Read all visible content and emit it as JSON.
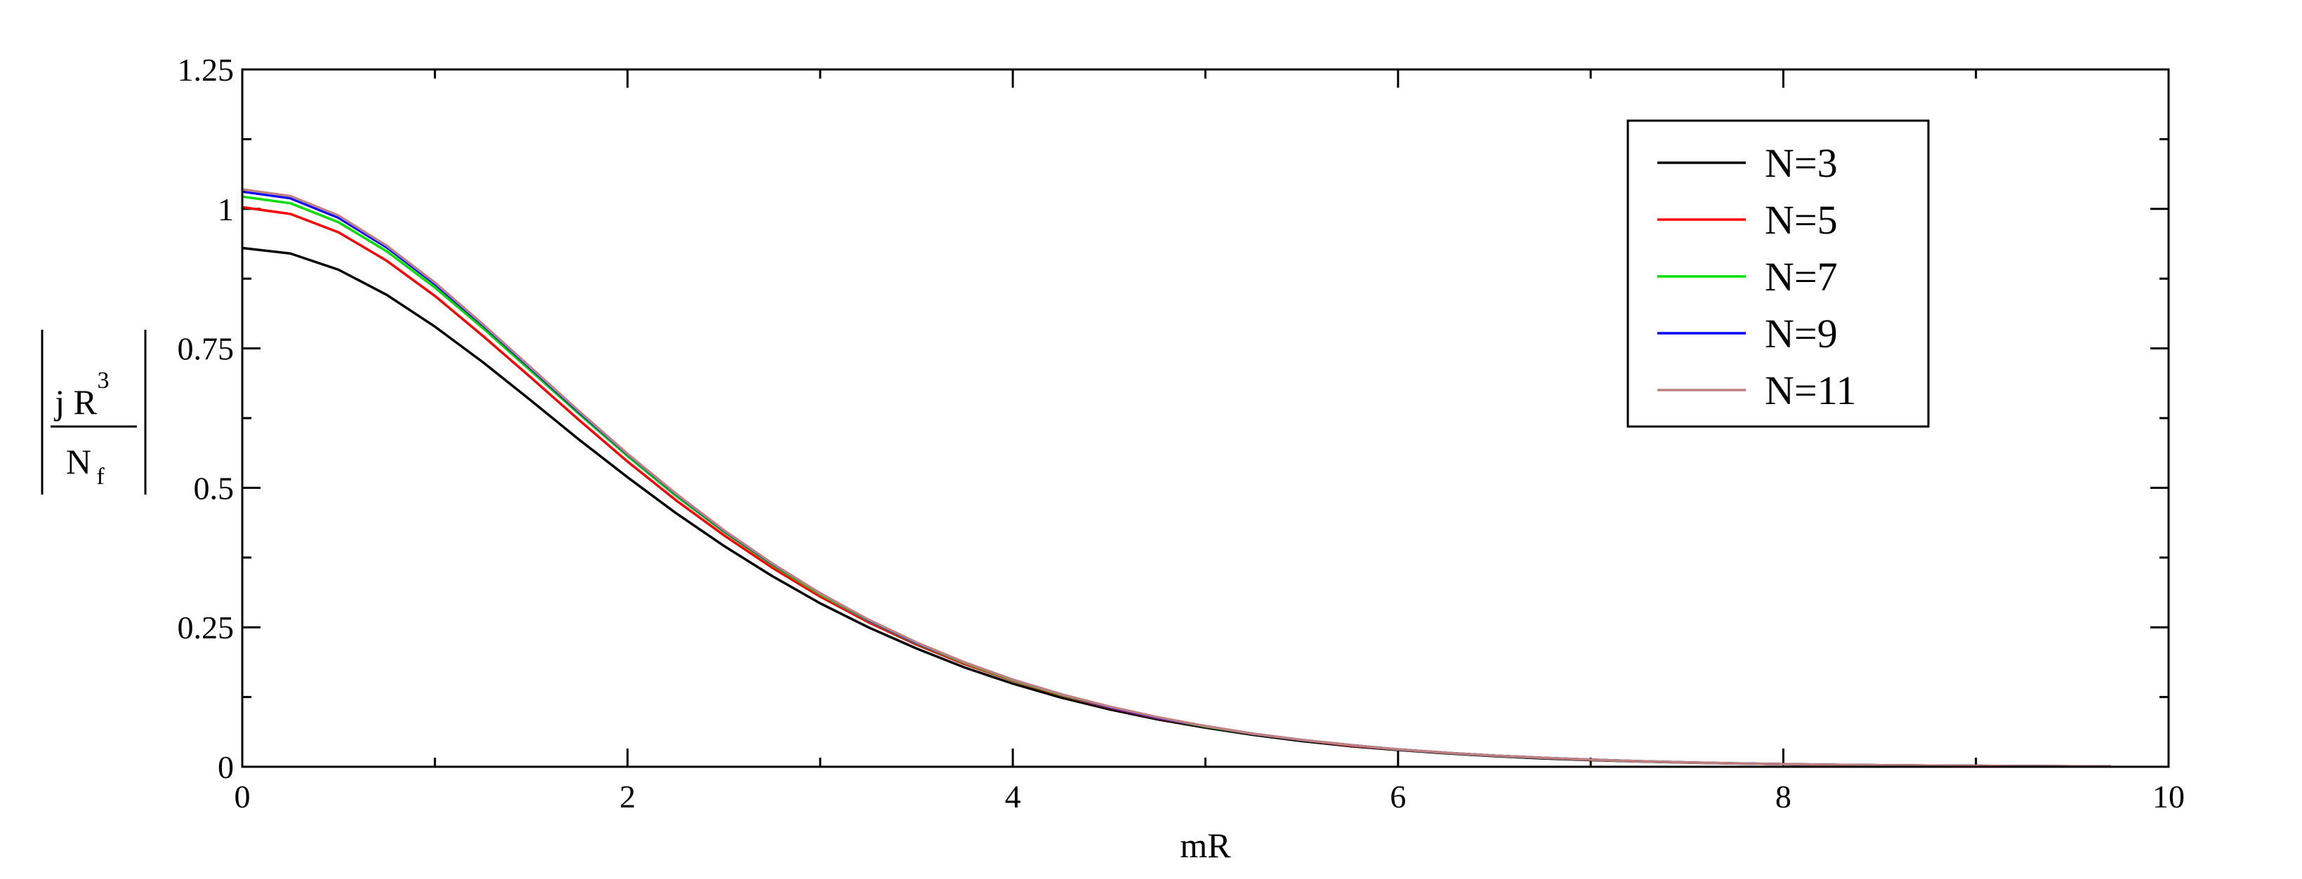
{
  "chart_data": {
    "type": "line",
    "xlabel": "mR",
    "ylabel": {
      "numerator": "j R",
      "numerator_exponent": "3",
      "denominator": "N",
      "denominator_subscript": "f"
    },
    "xlim": [
      0,
      10
    ],
    "ylim": [
      0,
      1.25
    ],
    "x_ticks": [
      "0",
      "2",
      "4",
      "6",
      "8",
      "10"
    ],
    "y_ticks": [
      "0",
      "0.25",
      "0.5",
      "0.75",
      "1",
      "1.25"
    ],
    "grid": false,
    "legend_position": "top-right",
    "x": [
      0,
      0.25,
      0.5,
      0.75,
      1,
      1.25,
      1.5,
      1.75,
      2,
      2.25,
      2.5,
      2.75,
      3,
      3.25,
      3.5,
      3.75,
      4,
      4.25,
      4.5,
      4.75,
      5,
      5.25,
      5.5,
      5.75,
      6,
      6.25,
      6.5,
      6.75,
      7,
      7.25,
      7.5,
      7.75,
      8,
      8.25,
      8.5,
      8.75,
      9,
      9.25,
      9.5,
      9.7
    ],
    "series": [
      {
        "name": "N=3",
        "color": "#000000",
        "values": [
          0.93,
          0.92,
          0.891,
          0.846,
          0.789,
          0.725,
          0.656,
          0.586,
          0.519,
          0.455,
          0.396,
          0.342,
          0.293,
          0.25,
          0.212,
          0.178,
          0.149,
          0.124,
          0.103,
          0.085,
          0.07,
          0.057,
          0.046,
          0.037,
          0.03,
          0.024,
          0.019,
          0.015,
          0.012,
          0.0095,
          0.0075,
          0.0059,
          0.0046,
          0.0036,
          0.0028,
          0.0022,
          0.0017,
          0.0013,
          0.001,
          0.0008
        ]
      },
      {
        "name": "N=5",
        "color": "#ff0000",
        "values": [
          1.003,
          0.991,
          0.958,
          0.907,
          0.844,
          0.772,
          0.697,
          0.621,
          0.547,
          0.478,
          0.415,
          0.357,
          0.305,
          0.259,
          0.219,
          0.184,
          0.154,
          0.128,
          0.106,
          0.087,
          0.072,
          0.059,
          0.048,
          0.038,
          0.031,
          0.025,
          0.02,
          0.016,
          0.0125,
          0.0098,
          0.0077,
          0.006,
          0.0047,
          0.0037,
          0.0029,
          0.0022,
          0.0017,
          0.0013,
          0.001,
          0.0008
        ]
      },
      {
        "name": "N=7",
        "color": "#00dd00",
        "values": [
          1.022,
          1.01,
          0.976,
          0.924,
          0.859,
          0.786,
          0.709,
          0.632,
          0.557,
          0.486,
          0.421,
          0.362,
          0.309,
          0.262,
          0.221,
          0.186,
          0.155,
          0.129,
          0.107,
          0.088,
          0.072,
          0.059,
          0.048,
          0.039,
          0.031,
          0.025,
          0.02,
          0.016,
          0.0127,
          0.0099,
          0.0078,
          0.0061,
          0.0047,
          0.0037,
          0.0029,
          0.0022,
          0.0017,
          0.0013,
          0.001,
          0.0008
        ]
      },
      {
        "name": "N=9",
        "color": "#0000ff",
        "values": [
          1.031,
          1.019,
          0.984,
          0.931,
          0.865,
          0.791,
          0.713,
          0.635,
          0.56,
          0.489,
          0.423,
          0.364,
          0.311,
          0.263,
          0.222,
          0.187,
          0.156,
          0.13,
          0.107,
          0.088,
          0.073,
          0.059,
          0.048,
          0.039,
          0.031,
          0.025,
          0.02,
          0.016,
          0.0128,
          0.01,
          0.0078,
          0.0061,
          0.0048,
          0.0037,
          0.0029,
          0.0022,
          0.0017,
          0.0013,
          0.001,
          0.0008
        ]
      },
      {
        "name": "N=11",
        "color": "#c08080",
        "values": [
          1.035,
          1.023,
          0.988,
          0.934,
          0.868,
          0.793,
          0.715,
          0.637,
          0.561,
          0.49,
          0.424,
          0.365,
          0.311,
          0.264,
          0.223,
          0.187,
          0.156,
          0.13,
          0.108,
          0.089,
          0.073,
          0.059,
          0.048,
          0.039,
          0.031,
          0.025,
          0.02,
          0.016,
          0.0128,
          0.01,
          0.0078,
          0.0061,
          0.0048,
          0.0037,
          0.0029,
          0.0022,
          0.0017,
          0.0013,
          0.001,
          0.0008
        ]
      }
    ]
  }
}
